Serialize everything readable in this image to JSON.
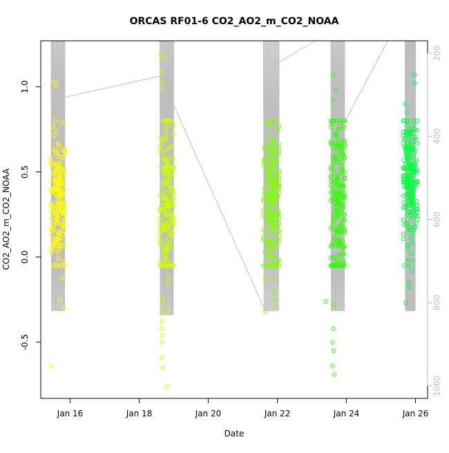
{
  "chart_data": {
    "type": "scatter",
    "title": "ORCAS RF01-6 CO2_AO2_m_CO2_NOAA",
    "xlabel": "Date",
    "ylabel": "CO2_AO2_m_CO2_NOAA",
    "x_axis": {
      "unit": "date (Jan 2016, day of month)",
      "range": [
        15.15,
        26.35
      ],
      "ticks": [
        16,
        18,
        20,
        22,
        24,
        26
      ],
      "tick_labels": [
        "Jan 16",
        "Jan 18",
        "Jan 20",
        "Jan 22",
        "Jan 24",
        "Jan 26"
      ]
    },
    "y_axis": {
      "range": [
        -0.83,
        1.27
      ],
      "ticks": [
        -0.5,
        0.0,
        0.5,
        1.0
      ],
      "tick_labels": [
        "-0.5",
        "0.0",
        "0.5",
        "1.0"
      ]
    },
    "y2_axis": {
      "range": [
        1030,
        170
      ],
      "ticks": [
        200,
        400,
        600,
        800,
        1000
      ],
      "tick_labels": [
        "200",
        "400",
        "600",
        "800",
        "1000"
      ],
      "color": "#bebebe"
    },
    "grid": false,
    "legend": "none",
    "series": [
      {
        "flight": 1,
        "color": "#ffff00",
        "x_range": [
          15.45,
          15.85
        ],
        "center": 15.65,
        "y_mean": 0.33,
        "y_sd": 0.2,
        "n_points": 200,
        "outliers": [
          {
            "x": 15.55,
            "y": 1.03
          },
          {
            "x": 15.6,
            "y": 1.01
          },
          {
            "x": 15.45,
            "y": -0.64
          },
          {
            "x": 15.82,
            "y": -0.3
          },
          {
            "x": 15.72,
            "y": -0.25
          },
          {
            "x": 15.78,
            "y": -0.12
          }
        ]
      },
      {
        "flight": 2,
        "color": "#ccff00",
        "x_range": [
          18.6,
          19.0
        ],
        "center": 18.8,
        "y_mean": 0.3,
        "y_sd": 0.27,
        "n_points": 200,
        "outliers": [
          {
            "x": 18.62,
            "y": 1.19
          },
          {
            "x": 18.7,
            "y": 1.17
          },
          {
            "x": 18.65,
            "y": 1.09
          },
          {
            "x": 18.67,
            "y": 1.03
          },
          {
            "x": 18.66,
            "y": 0.99
          },
          {
            "x": 18.8,
            "y": -0.76
          },
          {
            "x": 18.68,
            "y": -0.65
          },
          {
            "x": 18.65,
            "y": -0.59
          },
          {
            "x": 18.66,
            "y": -0.5
          },
          {
            "x": 18.67,
            "y": -0.46
          },
          {
            "x": 18.64,
            "y": -0.42
          },
          {
            "x": 18.66,
            "y": -0.38
          },
          {
            "x": 18.65,
            "y": -0.33
          },
          {
            "x": 18.68,
            "y": -0.27
          },
          {
            "x": 18.67,
            "y": -0.24
          },
          {
            "x": 18.82,
            "y": -0.32
          },
          {
            "x": 18.85,
            "y": -0.15
          },
          {
            "x": 18.83,
            "y": -0.12
          }
        ]
      },
      {
        "flight": 3,
        "color": "#80ff00",
        "x_range": [
          21.6,
          22.05
        ],
        "center": 21.85,
        "y_mean": 0.32,
        "y_sd": 0.22,
        "n_points": 220,
        "outliers": [
          {
            "x": 21.65,
            "y": -0.32
          },
          {
            "x": 21.95,
            "y": -0.29
          },
          {
            "x": 21.92,
            "y": -0.25
          },
          {
            "x": 21.9,
            "y": -0.2
          },
          {
            "x": 21.88,
            "y": -0.13
          },
          {
            "x": 21.65,
            "y": -0.13
          },
          {
            "x": 21.72,
            "y": 0.78
          },
          {
            "x": 21.76,
            "y": 0.79
          }
        ]
      },
      {
        "flight": 4,
        "color": "#33ff00",
        "x_range": [
          23.55,
          23.95
        ],
        "center": 23.75,
        "y_mean": 0.35,
        "y_sd": 0.3,
        "n_points": 230,
        "outliers": [
          {
            "x": 23.63,
            "y": 1.07
          },
          {
            "x": 23.7,
            "y": 0.98
          },
          {
            "x": 23.62,
            "y": 0.92
          },
          {
            "x": 23.65,
            "y": -0.69
          },
          {
            "x": 23.6,
            "y": -0.64
          },
          {
            "x": 23.63,
            "y": -0.55
          },
          {
            "x": 23.6,
            "y": -0.5
          },
          {
            "x": 23.62,
            "y": -0.42
          },
          {
            "x": 23.65,
            "y": -0.28
          },
          {
            "x": 23.4,
            "y": -0.26
          },
          {
            "x": 23.9,
            "y": -0.02
          }
        ]
      },
      {
        "flight": 5,
        "color": "#00ff40",
        "x_range": [
          25.65,
          26.05
        ],
        "center": 25.85,
        "y_mean": 0.45,
        "y_sd": 0.18,
        "n_points": 230,
        "outliers": [
          {
            "x": 25.97,
            "y": 1.07
          },
          {
            "x": 25.98,
            "y": 1.02
          },
          {
            "x": 25.7,
            "y": 0.9
          },
          {
            "x": 25.75,
            "y": 0.85
          },
          {
            "x": 25.72,
            "y": -0.27
          },
          {
            "x": 25.82,
            "y": -0.18
          },
          {
            "x": 25.8,
            "y": -0.15
          },
          {
            "x": 25.9,
            "y": -0.08
          }
        ]
      }
    ],
    "altitude_trace": {
      "axis": "y2",
      "color": "#bebebe",
      "flights": [
        {
          "x_range": [
            15.45,
            15.85
          ],
          "min": 170,
          "max": 820
        },
        {
          "x_range": [
            18.6,
            19.0
          ],
          "min": 170,
          "max": 830
        },
        {
          "x_range": [
            21.6,
            22.05
          ],
          "min": 170,
          "max": 820
        },
        {
          "x_range": [
            23.55,
            23.95
          ],
          "min": 170,
          "max": 820
        },
        {
          "x_range": [
            25.7,
            26.0
          ],
          "min": 170,
          "max": 820
        }
      ],
      "ferry_lines": [
        [
          {
            "x": 15.88,
            "y": 305
          },
          {
            "x": 18.6,
            "y": 255
          }
        ],
        [
          {
            "x": 18.92,
            "y": 310
          },
          {
            "x": 21.65,
            "y": 820
          }
        ],
        [
          {
            "x": 21.98,
            "y": 225
          },
          {
            "x": 23.1,
            "y": 170
          }
        ],
        [
          {
            "x": 23.82,
            "y": 385
          },
          {
            "x": 25.2,
            "y": 170
          }
        ]
      ]
    }
  }
}
